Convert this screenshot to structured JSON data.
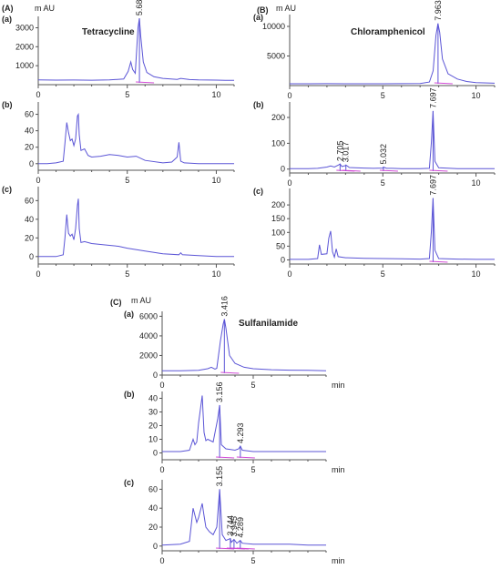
{
  "figure": {
    "sections": [
      {
        "letter": "(A)",
        "title": "Tetracycline",
        "unit": "m AU"
      },
      {
        "letter": "(B)",
        "title": "Chloramphenicol",
        "unit": "m AU"
      },
      {
        "letter": "(C)",
        "title": "Sulfanilamide",
        "unit": "m AU",
        "xunit": "min"
      }
    ]
  },
  "chart_data": [
    {
      "type": "line",
      "section": "(A)",
      "panel": "(a)",
      "title": "Tetracycline",
      "ylabel": "m AU",
      "xlim": [
        0,
        11
      ],
      "ylim": [
        0,
        3600
      ],
      "xticks": [
        0,
        5,
        10
      ],
      "yticks": [
        1000,
        2000,
        3000
      ],
      "series": [
        {
          "x": [
            0,
            1,
            2,
            3,
            4,
            4.8,
            5.05,
            5.2,
            5.3,
            5.45,
            5.6,
            5.68,
            5.75,
            5.9,
            6.1,
            6.5,
            7,
            7.8,
            8,
            8.5,
            9,
            10,
            10.5,
            11
          ],
          "y": [
            250,
            240,
            245,
            235,
            250,
            300,
            700,
            1200,
            800,
            600,
            3000,
            3500,
            2600,
            1200,
            650,
            420,
            330,
            280,
            330,
            270,
            250,
            240,
            230,
            230
          ]
        }
      ],
      "peaks": [
        {
          "rt": 5.683,
          "label": "5.683",
          "y": 3500
        }
      ]
    },
    {
      "type": "line",
      "section": "(A)",
      "panel": "(b)",
      "xlim": [
        0,
        11
      ],
      "ylim": [
        -8,
        75
      ],
      "xticks": [
        0,
        5,
        10
      ],
      "yticks": [
        0,
        20,
        40,
        60
      ],
      "series": [
        {
          "x": [
            0,
            0.5,
            1,
            1.4,
            1.5,
            1.6,
            1.7,
            1.8,
            1.9,
            2,
            2.1,
            2.2,
            2.25,
            2.3,
            2.4,
            2.6,
            2.8,
            3,
            3.5,
            4,
            4.5,
            5,
            5.5,
            6,
            7,
            7.5,
            7.8,
            7.9,
            8,
            8.2,
            9,
            10,
            11
          ],
          "y": [
            0,
            0,
            1,
            3,
            25,
            50,
            38,
            28,
            30,
            22,
            30,
            58,
            60,
            35,
            16,
            18,
            10,
            8,
            9,
            11,
            10,
            8,
            9,
            4,
            1,
            2,
            8,
            26,
            3,
            1,
            0,
            0,
            0
          ]
        }
      ],
      "peaks": []
    },
    {
      "type": "line",
      "section": "(A)",
      "panel": "(c)",
      "xlim": [
        0,
        11
      ],
      "ylim": [
        -8,
        75
      ],
      "xticks": [
        0,
        5,
        10
      ],
      "yticks": [
        0,
        20,
        40,
        60
      ],
      "series": [
        {
          "x": [
            0,
            0.5,
            1,
            1.4,
            1.5,
            1.6,
            1.7,
            1.8,
            1.9,
            2,
            2.1,
            2.2,
            2.25,
            2.3,
            2.4,
            2.6,
            3,
            3.5,
            4,
            4.5,
            5,
            6,
            7,
            7.9,
            8,
            8.1,
            9,
            10,
            11
          ],
          "y": [
            0,
            0,
            0,
            2,
            20,
            45,
            25,
            22,
            24,
            18,
            30,
            55,
            62,
            30,
            15,
            16,
            14,
            13,
            12,
            11,
            9,
            6,
            3,
            2,
            4,
            2,
            1,
            0,
            0
          ]
        }
      ],
      "peaks": []
    },
    {
      "type": "line",
      "section": "(B)",
      "panel": "(a)",
      "title": "Chloramphenicol",
      "ylabel": "m AU",
      "xlim": [
        0,
        11
      ],
      "ylim": [
        0,
        12000
      ],
      "xticks": [
        0,
        5,
        10
      ],
      "yticks": [
        5000,
        10000
      ],
      "series": [
        {
          "x": [
            0,
            1,
            2,
            3,
            4,
            5,
            6,
            7,
            7.5,
            7.7,
            7.85,
            7.96,
            8.05,
            8.2,
            8.5,
            9,
            9.5,
            10,
            11
          ],
          "y": [
            300,
            300,
            320,
            300,
            300,
            300,
            320,
            350,
            600,
            2500,
            8500,
            10500,
            9000,
            4500,
            2000,
            1100,
            700,
            500,
            400
          ]
        }
      ],
      "peaks": [
        {
          "rt": 7.963,
          "label": "7.963",
          "y": 10500
        }
      ]
    },
    {
      "type": "line",
      "section": "(B)",
      "panel": "(b)",
      "xlim": [
        0,
        11
      ],
      "ylim": [
        -15,
        260
      ],
      "xticks": [
        0,
        5,
        10
      ],
      "yticks": [
        0,
        100,
        200
      ],
      "series": [
        {
          "x": [
            0,
            1,
            1.5,
            2,
            2.2,
            2.4,
            2.6,
            2.705,
            2.8,
            3,
            3.017,
            3.2,
            3.5,
            4,
            4.5,
            5,
            5.032,
            5.2,
            5.5,
            6,
            7,
            7.5,
            7.6,
            7.697,
            7.8,
            8,
            9,
            10,
            11
          ],
          "y": [
            2,
            2,
            3,
            8,
            12,
            8,
            15,
            20,
            10,
            14,
            16,
            6,
            5,
            4,
            3,
            4,
            8,
            3,
            3,
            2,
            2,
            3,
            100,
            225,
            30,
            5,
            2,
            2,
            2
          ]
        }
      ],
      "peaks": [
        {
          "rt": 2.705,
          "label": "2.705",
          "y": 20
        },
        {
          "rt": 3.017,
          "label": "3.017",
          "y": 16
        },
        {
          "rt": 5.032,
          "label": "5.032",
          "y": 8
        },
        {
          "rt": 7.697,
          "label": "7.697",
          "y": 225
        }
      ]
    },
    {
      "type": "line",
      "section": "(B)",
      "panel": "(c)",
      "xlim": [
        0,
        11
      ],
      "ylim": [
        -15,
        260
      ],
      "xticks": [
        0,
        5,
        10
      ],
      "yticks": [
        0,
        50,
        100,
        150,
        200
      ],
      "series": [
        {
          "x": [
            0,
            1,
            1.5,
            1.6,
            1.7,
            2,
            2.1,
            2.2,
            2.3,
            2.4,
            2.5,
            2.6,
            3,
            4,
            5,
            6,
            7,
            7.5,
            7.6,
            7.697,
            7.8,
            8,
            9,
            10,
            11
          ],
          "y": [
            2,
            2,
            5,
            55,
            20,
            22,
            80,
            105,
            30,
            10,
            40,
            12,
            8,
            6,
            5,
            4,
            3,
            5,
            100,
            225,
            35,
            5,
            3,
            2,
            2
          ]
        }
      ],
      "peaks": [
        {
          "rt": 7.697,
          "label": "7.697",
          "y": 225
        }
      ]
    },
    {
      "type": "line",
      "section": "(C)",
      "panel": "(a)",
      "title": "Sulfanilamide",
      "ylabel": "m AU",
      "xlim": [
        0,
        9
      ],
      "ylim": [
        0,
        6500
      ],
      "xticks": [
        0,
        5
      ],
      "yticks": [
        0,
        2000,
        4000,
        6000
      ],
      "xlabel": "min",
      "series": [
        {
          "x": [
            0,
            1,
            2,
            2.5,
            2.7,
            2.9,
            3,
            3.2,
            3.35,
            3.42,
            3.5,
            3.7,
            4,
            4.5,
            5,
            6,
            7,
            8,
            9
          ],
          "y": [
            450,
            450,
            480,
            650,
            800,
            600,
            700,
            3500,
            5200,
            5700,
            4800,
            2000,
            1200,
            800,
            650,
            550,
            500,
            480,
            450
          ]
        }
      ],
      "peaks": [
        {
          "rt": 3.416,
          "label": "3.416",
          "y": 5700
        }
      ]
    },
    {
      "type": "line",
      "section": "(C)",
      "panel": "(b)",
      "xlim": [
        0,
        9
      ],
      "ylim": [
        -5,
        45
      ],
      "xticks": [
        0,
        5
      ],
      "yticks": [
        0,
        10,
        20,
        30,
        40
      ],
      "xlabel": "min",
      "series": [
        {
          "x": [
            0,
            1,
            1.5,
            1.7,
            1.8,
            1.9,
            2,
            2.2,
            2.3,
            2.4,
            2.5,
            2.8,
            3.05,
            3.156,
            3.25,
            3.5,
            4,
            4.2,
            4.293,
            4.4,
            5,
            6,
            7,
            8,
            9
          ],
          "y": [
            1,
            1,
            2,
            10,
            6,
            8,
            22,
            42,
            15,
            9,
            10,
            8,
            25,
            35,
            6,
            3,
            2,
            3,
            5,
            2,
            1,
            1,
            1,
            1,
            1
          ]
        }
      ],
      "peaks": [
        {
          "rt": 3.156,
          "label": "3.156",
          "y": 35
        },
        {
          "rt": 4.293,
          "label": "4.293",
          "y": 5
        }
      ]
    },
    {
      "type": "line",
      "section": "(C)",
      "panel": "(c)",
      "xlim": [
        0,
        9
      ],
      "ylim": [
        -5,
        70
      ],
      "xticks": [
        0,
        5
      ],
      "yticks": [
        0,
        20,
        40,
        60
      ],
      "xlabel": "min",
      "series": [
        {
          "x": [
            0,
            1,
            1.5,
            1.7,
            1.9,
            2,
            2.2,
            2.3,
            2.4,
            2.6,
            2.8,
            3,
            3.155,
            3.3,
            3.5,
            3.744,
            3.8,
            3.945,
            4.1,
            4.289,
            4.4,
            5,
            6,
            7,
            8,
            9
          ],
          "y": [
            1,
            2,
            5,
            40,
            25,
            30,
            45,
            32,
            20,
            15,
            12,
            20,
            60,
            12,
            6,
            8,
            4,
            7,
            3,
            6,
            3,
            2,
            2,
            2,
            1,
            1
          ]
        }
      ],
      "peaks": [
        {
          "rt": 3.155,
          "label": "3.155",
          "y": 60
        },
        {
          "rt": 3.744,
          "label": "3.744",
          "y": 8
        },
        {
          "rt": 3.945,
          "label": "3.945",
          "y": 7
        },
        {
          "rt": 4.289,
          "label": "4.289",
          "y": 6
        }
      ]
    }
  ]
}
